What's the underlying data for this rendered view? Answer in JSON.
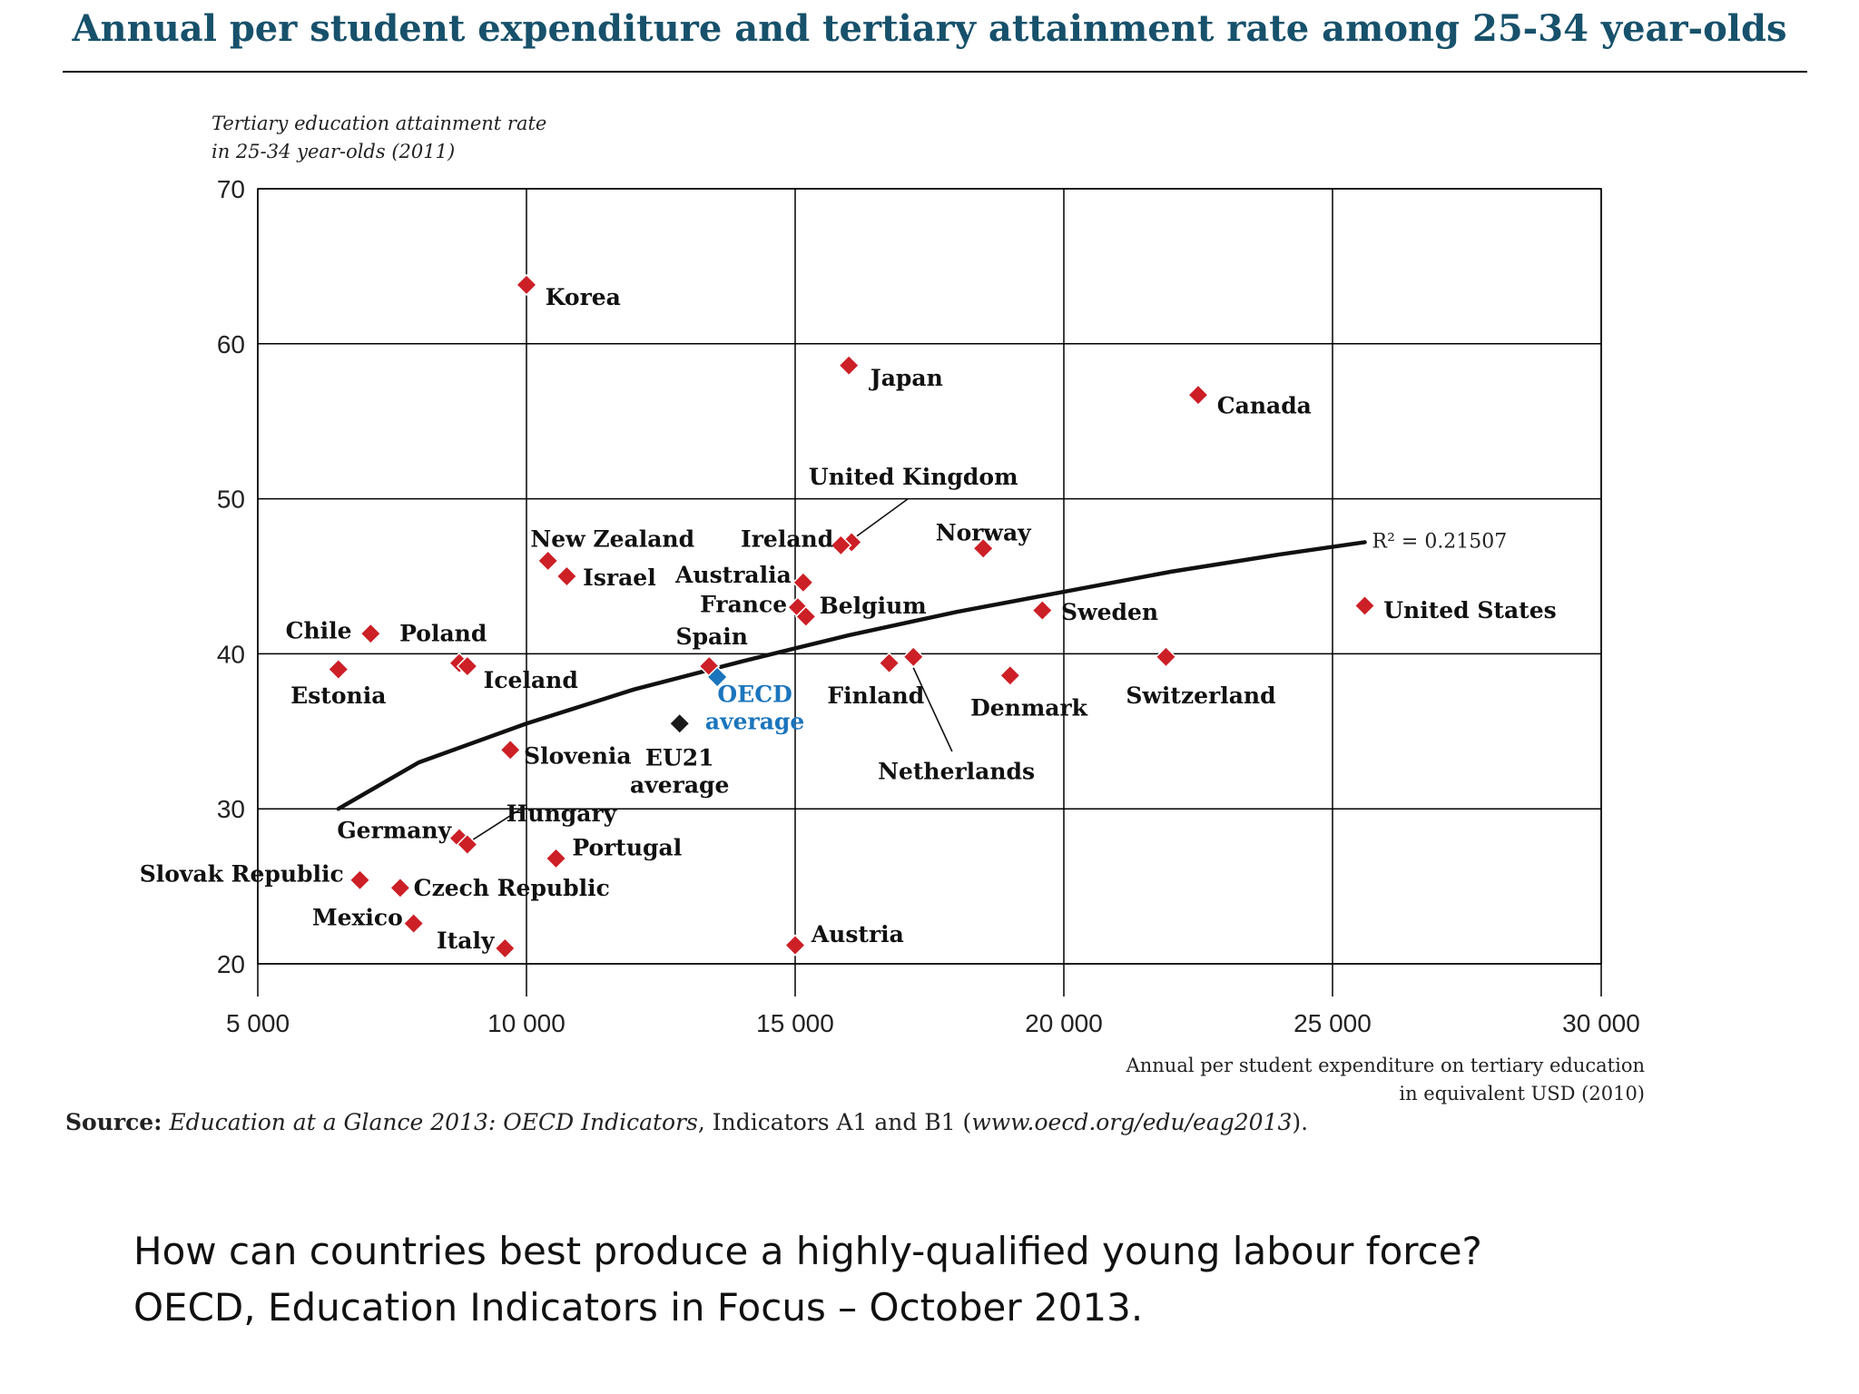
{
  "title": "Annual per student expenditure and tertiary attainment rate among 25-34 year-olds",
  "source": {
    "label": "Source:",
    "publication": "Education at a Glance 2013: OECD Indicators",
    "indicators": ", Indicators A1 and B1 (",
    "url": "www.oecd.org/edu/eag2013",
    "end": ")."
  },
  "caption": {
    "line1": "How can countries best produce a highly-qualified young labour force?",
    "line2": "OECD, Education Indicators in Focus – October 2013."
  },
  "colors": {
    "country": "#cc1f26",
    "oecd": "#1b75bc",
    "eu21": "#1a1a1a",
    "title": "#17516b",
    "grid": "#000000"
  },
  "chart_data": {
    "type": "scatter",
    "xlabel": [
      "Annual per student expenditure on tertiary education",
      "in equivalent USD (2010)"
    ],
    "ylabel": [
      "Tertiary education attainment rate",
      "in 25-34 year-olds (2011)"
    ],
    "xlim": [
      5000,
      30000
    ],
    "ylim": [
      20,
      70
    ],
    "xticks": [
      {
        "value": 5000,
        "label": "5 000"
      },
      {
        "value": 10000,
        "label": "10 000"
      },
      {
        "value": 15000,
        "label": "15 000"
      },
      {
        "value": 20000,
        "label": "20 000"
      },
      {
        "value": 25000,
        "label": "25 000"
      },
      {
        "value": 30000,
        "label": "30 000"
      }
    ],
    "yticks": [
      {
        "value": 20,
        "label": "20"
      },
      {
        "value": 30,
        "label": "30"
      },
      {
        "value": 40,
        "label": "40"
      },
      {
        "value": 50,
        "label": "50"
      },
      {
        "value": 60,
        "label": "60"
      },
      {
        "value": 70,
        "label": "70"
      }
    ],
    "grid": true,
    "trendline": {
      "type": "logarithmic",
      "label": "R² = 0.21507",
      "points": [
        [
          6500,
          30.0
        ],
        [
          8000,
          33.0
        ],
        [
          10000,
          35.5
        ],
        [
          12000,
          37.7
        ],
        [
          14000,
          39.5
        ],
        [
          16000,
          41.2
        ],
        [
          18000,
          42.7
        ],
        [
          20000,
          44.0
        ],
        [
          22000,
          45.3
        ],
        [
          24000,
          46.4
        ],
        [
          25600,
          47.2
        ]
      ]
    },
    "points": [
      {
        "name": "Korea",
        "x": 10000,
        "y": 63.8,
        "kind": "country",
        "lx": 10350,
        "ly": 62.5,
        "anchor": "start"
      },
      {
        "name": "Japan",
        "x": 16000,
        "y": 58.6,
        "kind": "country",
        "lx": 16400,
        "ly": 57.3,
        "anchor": "start"
      },
      {
        "name": "Canada",
        "x": 22500,
        "y": 56.7,
        "kind": "country",
        "lx": 22850,
        "ly": 55.5,
        "anchor": "start"
      },
      {
        "name": "United Kingdom",
        "x": 16050,
        "y": 47.2,
        "kind": "country",
        "lx": 17200,
        "ly": 50.9,
        "anchor": "middle",
        "leader": [
          [
            16150,
            47.6
          ],
          [
            17100,
            50.0
          ]
        ]
      },
      {
        "name": "Ireland",
        "x": 15850,
        "y": 47.0,
        "kind": "country",
        "lx": 14850,
        "ly": 46.9,
        "anchor": "middle"
      },
      {
        "name": "Norway",
        "x": 18500,
        "y": 46.8,
        "kind": "country",
        "lx": 18500,
        "ly": 47.3,
        "anchor": "middle"
      },
      {
        "name": "New Zealand",
        "x": 10400,
        "y": 46.0,
        "kind": "country",
        "lx": 11600,
        "ly": 46.9,
        "anchor": "middle"
      },
      {
        "name": "Israel",
        "x": 10750,
        "y": 45.0,
        "kind": "country",
        "lx": 11050,
        "ly": 44.4,
        "anchor": "start"
      },
      {
        "name": "Australia",
        "x": 15150,
        "y": 44.6,
        "kind": "country",
        "lx": 13850,
        "ly": 44.6,
        "anchor": "middle"
      },
      {
        "name": "France",
        "x": 15050,
        "y": 43.0,
        "kind": "country",
        "lx": 14850,
        "ly": 42.7,
        "anchor": "end"
      },
      {
        "name": "Belgium",
        "x": 15200,
        "y": 42.4,
        "kind": "country",
        "lx": 15450,
        "ly": 42.6,
        "anchor": "start"
      },
      {
        "name": "Sweden",
        "x": 19600,
        "y": 42.8,
        "kind": "country",
        "lx": 19950,
        "ly": 42.2,
        "anchor": "start"
      },
      {
        "name": "United States",
        "x": 25600,
        "y": 43.1,
        "kind": "country",
        "lx": 25950,
        "ly": 42.3,
        "anchor": "start"
      },
      {
        "name": "Chile",
        "x": 7100,
        "y": 41.3,
        "kind": "country",
        "lx": 6750,
        "ly": 41.0,
        "anchor": "end"
      },
      {
        "name": "Poland",
        "x": 8750,
        "y": 39.4,
        "kind": "country",
        "lx": 8450,
        "ly": 40.8,
        "anchor": "middle"
      },
      {
        "name": "Estonia",
        "x": 6500,
        "y": 39.0,
        "kind": "country",
        "lx": 6500,
        "ly": 36.8,
        "anchor": "middle"
      },
      {
        "name": "Iceland",
        "x": 8900,
        "y": 39.2,
        "kind": "country",
        "lx": 9200,
        "ly": 37.8,
        "anchor": "start"
      },
      {
        "name": "Spain",
        "x": 13400,
        "y": 39.2,
        "kind": "country",
        "lx": 13450,
        "ly": 40.6,
        "anchor": "middle"
      },
      {
        "name": "Finland",
        "x": 16750,
        "y": 39.4,
        "kind": "country",
        "lx": 16500,
        "ly": 36.8,
        "anchor": "middle"
      },
      {
        "name": "Netherlands",
        "x": 17200,
        "y": 39.8,
        "kind": "country",
        "lx": 18000,
        "ly": 31.9,
        "anchor": "middle",
        "leader": [
          [
            17200,
            39.1
          ],
          [
            17920,
            33.7
          ]
        ]
      },
      {
        "name": "Denmark",
        "x": 19000,
        "y": 38.6,
        "kind": "country",
        "lx": 19350,
        "ly": 36.0,
        "anchor": "middle"
      },
      {
        "name": "Switzerland",
        "x": 21900,
        "y": 39.8,
        "kind": "country",
        "lx": 22550,
        "ly": 36.8,
        "anchor": "middle"
      },
      {
        "name": "Slovenia",
        "x": 9700,
        "y": 33.8,
        "kind": "country",
        "lx": 9950,
        "ly": 32.9,
        "anchor": "start"
      },
      {
        "name": "Germany",
        "x": 8750,
        "y": 28.1,
        "kind": "country",
        "lx": 8600,
        "ly": 28.1,
        "anchor": "end"
      },
      {
        "name": "Hungary",
        "x": 8900,
        "y": 27.7,
        "kind": "country",
        "lx": 10650,
        "ly": 29.2,
        "anchor": "middle",
        "leader": [
          [
            9000,
            28.0
          ],
          [
            9900,
            30.0
          ]
        ]
      },
      {
        "name": "Portugal",
        "x": 10550,
        "y": 26.8,
        "kind": "country",
        "lx": 10850,
        "ly": 27.0,
        "anchor": "start"
      },
      {
        "name": "Slovak Republic",
        "x": 6900,
        "y": 25.4,
        "kind": "country",
        "lx": 6600,
        "ly": 25.3,
        "anchor": "end"
      },
      {
        "name": "Czech Republic",
        "x": 7650,
        "y": 24.9,
        "kind": "country",
        "lx": 7900,
        "ly": 24.4,
        "anchor": "start"
      },
      {
        "name": "Mexico",
        "x": 7900,
        "y": 22.6,
        "kind": "country",
        "lx": 7700,
        "ly": 22.5,
        "anchor": "end"
      },
      {
        "name": "Italy",
        "x": 9600,
        "y": 21.0,
        "kind": "country",
        "lx": 9400,
        "ly": 21.0,
        "anchor": "end"
      },
      {
        "name": "Austria",
        "x": 15000,
        "y": 21.2,
        "kind": "country",
        "lx": 15300,
        "ly": 21.4,
        "anchor": "start"
      },
      {
        "name": "OECD average",
        "x": 13550,
        "y": 38.5,
        "kind": "oecd",
        "lines": [
          "OECD",
          "average"
        ],
        "lx": 14250,
        "ly": 36.9,
        "anchor": "middle"
      },
      {
        "name": "EU21 average",
        "x": 12850,
        "y": 35.5,
        "kind": "eu21",
        "lines": [
          "EU21",
          "average"
        ],
        "lx": 12850,
        "ly": 32.8,
        "anchor": "middle"
      }
    ]
  }
}
